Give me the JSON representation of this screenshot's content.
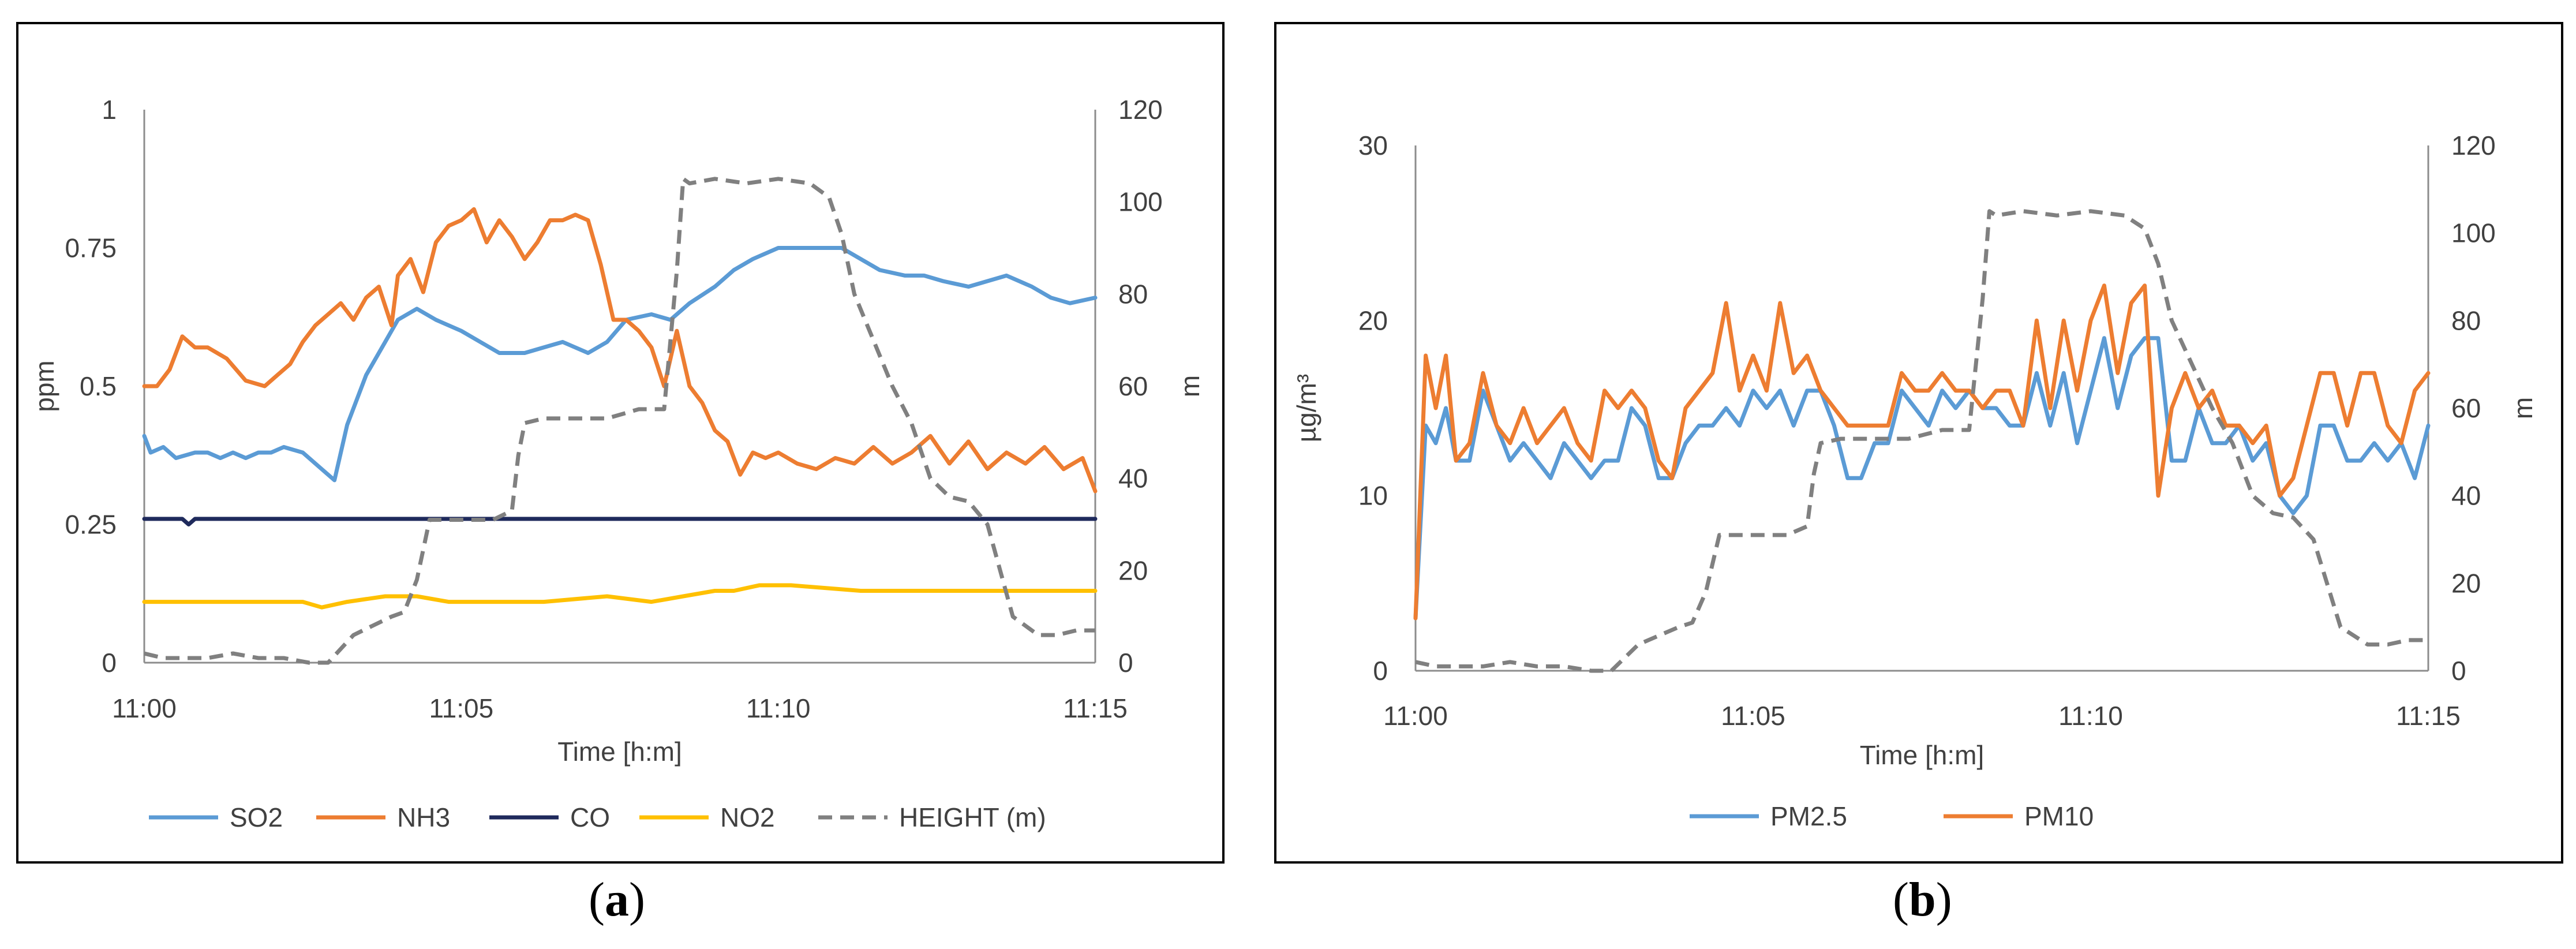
{
  "figure": {
    "caption_a": "(a)",
    "caption_b": "(b)"
  },
  "chart_data": [
    {
      "id": "a",
      "type": "line",
      "title": "",
      "xlabel": "Time [h:m]",
      "ylabel": "ppm",
      "y2label": "m",
      "xlim": [
        0,
        15
      ],
      "ylim": [
        0,
        1
      ],
      "y2lim": [
        0,
        120
      ],
      "xticks": [
        0,
        5,
        10,
        15
      ],
      "xtick_labels": [
        "11:00",
        "11:05",
        "11:10",
        "11:15"
      ],
      "yticks": [
        0,
        0.25,
        0.5,
        0.75,
        1
      ],
      "ytick_labels": [
        "0",
        "0.25",
        "0.5",
        "0.75",
        "1"
      ],
      "y2ticks": [
        0,
        20,
        40,
        60,
        80,
        100,
        120
      ],
      "y2tick_labels": [
        "0",
        "20",
        "40",
        "60",
        "80",
        "100",
        "120"
      ],
      "legend_position": "bottom",
      "series": [
        {
          "name": "SO2",
          "color": "#5B9BD5",
          "axis": "left",
          "dash": "solid",
          "x": [
            0,
            0.1,
            0.3,
            0.5,
            0.8,
            1.0,
            1.2,
            1.4,
            1.6,
            1.8,
            2.0,
            2.2,
            2.5,
            2.8,
            3.0,
            3.2,
            3.5,
            3.8,
            4.0,
            4.3,
            4.6,
            5.0,
            5.3,
            5.6,
            6.0,
            6.3,
            6.6,
            7.0,
            7.3,
            7.6,
            8.0,
            8.3,
            8.6,
            9.0,
            9.3,
            9.6,
            10.0,
            10.5,
            11.0,
            11.3,
            11.6,
            12.0,
            12.3,
            12.6,
            13.0,
            13.3,
            13.6,
            14.0,
            14.3,
            14.6,
            15.0
          ],
          "y": [
            0.41,
            0.38,
            0.39,
            0.37,
            0.38,
            0.38,
            0.37,
            0.38,
            0.37,
            0.38,
            0.38,
            0.39,
            0.38,
            0.35,
            0.33,
            0.43,
            0.52,
            0.58,
            0.62,
            0.64,
            0.62,
            0.6,
            0.58,
            0.56,
            0.56,
            0.57,
            0.58,
            0.56,
            0.58,
            0.62,
            0.63,
            0.62,
            0.65,
            0.68,
            0.71,
            0.73,
            0.75,
            0.75,
            0.75,
            0.73,
            0.71,
            0.7,
            0.7,
            0.69,
            0.68,
            0.69,
            0.7,
            0.68,
            0.66,
            0.65,
            0.66
          ]
        },
        {
          "name": "NH3",
          "color": "#ED7D31",
          "axis": "left",
          "dash": "solid",
          "x": [
            0,
            0.2,
            0.4,
            0.6,
            0.8,
            1.0,
            1.3,
            1.6,
            1.9,
            2.1,
            2.3,
            2.5,
            2.7,
            2.9,
            3.1,
            3.3,
            3.5,
            3.7,
            3.9,
            4.0,
            4.2,
            4.4,
            4.6,
            4.8,
            5.0,
            5.2,
            5.4,
            5.6,
            5.8,
            6.0,
            6.2,
            6.4,
            6.6,
            6.8,
            7.0,
            7.2,
            7.4,
            7.6,
            7.8,
            8.0,
            8.2,
            8.4,
            8.6,
            8.8,
            9.0,
            9.2,
            9.4,
            9.6,
            9.8,
            10.0,
            10.3,
            10.6,
            10.9,
            11.2,
            11.5,
            11.8,
            12.1,
            12.4,
            12.7,
            13.0,
            13.3,
            13.6,
            13.9,
            14.2,
            14.5,
            14.8,
            15.0
          ],
          "y": [
            0.5,
            0.5,
            0.53,
            0.59,
            0.57,
            0.57,
            0.55,
            0.51,
            0.5,
            0.52,
            0.54,
            0.58,
            0.61,
            0.63,
            0.65,
            0.62,
            0.66,
            0.68,
            0.61,
            0.7,
            0.73,
            0.67,
            0.76,
            0.79,
            0.8,
            0.82,
            0.76,
            0.8,
            0.77,
            0.73,
            0.76,
            0.8,
            0.8,
            0.81,
            0.8,
            0.72,
            0.62,
            0.62,
            0.6,
            0.57,
            0.5,
            0.6,
            0.5,
            0.47,
            0.42,
            0.4,
            0.34,
            0.38,
            0.37,
            0.38,
            0.36,
            0.35,
            0.37,
            0.36,
            0.39,
            0.36,
            0.38,
            0.41,
            0.36,
            0.4,
            0.35,
            0.38,
            0.36,
            0.39,
            0.35,
            0.37,
            0.31
          ]
        },
        {
          "name": "CO",
          "color": "#1F2A5C",
          "axis": "left",
          "dash": "solid",
          "x": [
            0,
            0.6,
            0.7,
            0.8,
            15
          ],
          "y": [
            0.26,
            0.26,
            0.25,
            0.26,
            0.26
          ]
        },
        {
          "name": "NO2",
          "color": "#FFC000",
          "axis": "left",
          "dash": "solid",
          "x": [
            0,
            2.0,
            2.5,
            2.8,
            3.2,
            3.8,
            4.3,
            4.8,
            6.3,
            7.3,
            8.0,
            8.5,
            9.0,
            9.3,
            9.7,
            10.2,
            11.3,
            12.5,
            13.5,
            15.0
          ],
          "y": [
            0.11,
            0.11,
            0.11,
            0.1,
            0.11,
            0.12,
            0.12,
            0.11,
            0.11,
            0.12,
            0.11,
            0.12,
            0.13,
            0.13,
            0.14,
            0.14,
            0.13,
            0.13,
            0.13,
            0.13
          ]
        },
        {
          "name": "HEIGHT (m)",
          "color": "#808080",
          "axis": "right",
          "dash": "dashed",
          "x": [
            0,
            0.3,
            0.6,
            1.0,
            1.4,
            1.8,
            2.2,
            2.6,
            2.9,
            3.1,
            3.3,
            3.6,
            3.9,
            4.1,
            4.3,
            4.5,
            5.0,
            5.5,
            5.8,
            5.9,
            6.0,
            6.3,
            6.8,
            7.3,
            7.8,
            8.2,
            8.4,
            8.5,
            8.6,
            9.0,
            9.5,
            10.0,
            10.5,
            10.8,
            11.0,
            11.2,
            11.5,
            11.8,
            12.1,
            12.4,
            12.7,
            13.0,
            13.3,
            13.5,
            13.7,
            13.9,
            14.1,
            14.4,
            14.7,
            15.0
          ],
          "y": [
            2,
            1,
            1,
            1,
            2,
            1,
            1,
            0,
            0,
            3,
            6,
            8,
            10,
            11,
            18,
            31,
            31,
            31,
            33,
            45,
            52,
            53,
            53,
            53,
            55,
            55,
            85,
            105,
            104,
            105,
            104,
            105,
            104,
            101,
            93,
            80,
            70,
            60,
            52,
            40,
            36,
            35,
            30,
            20,
            10,
            8,
            6,
            6,
            7,
            7
          ]
        }
      ]
    },
    {
      "id": "b",
      "type": "line",
      "title": "",
      "xlabel": "Time [h:m]",
      "ylabel": "µg/m³",
      "y2label": "m",
      "xlim": [
        0,
        15
      ],
      "ylim": [
        0,
        30
      ],
      "y2lim": [
        0,
        120
      ],
      "xticks": [
        0,
        5,
        10,
        15
      ],
      "xtick_labels": [
        "11:00",
        "11:05",
        "11:10",
        "11:15"
      ],
      "yticks": [
        0,
        10,
        20,
        30
      ],
      "ytick_labels": [
        "0",
        "10",
        "20",
        "30"
      ],
      "y2ticks": [
        0,
        20,
        40,
        60,
        80,
        100,
        120
      ],
      "y2tick_labels": [
        "0",
        "20",
        "40",
        "60",
        "80",
        "100",
        "120"
      ],
      "legend_position": "bottom",
      "series": [
        {
          "name": "PM2.5",
          "color": "#5B9BD5",
          "axis": "left",
          "dash": "solid",
          "x": [
            0,
            0.15,
            0.3,
            0.45,
            0.6,
            0.8,
            1.0,
            1.2,
            1.4,
            1.6,
            1.8,
            2.0,
            2.2,
            2.4,
            2.6,
            2.8,
            3.0,
            3.2,
            3.4,
            3.6,
            3.8,
            4.0,
            4.2,
            4.4,
            4.6,
            4.8,
            5.0,
            5.2,
            5.4,
            5.6,
            5.8,
            6.0,
            6.2,
            6.4,
            6.6,
            6.8,
            7.0,
            7.2,
            7.4,
            7.6,
            7.8,
            8.0,
            8.2,
            8.4,
            8.6,
            8.8,
            9.0,
            9.2,
            9.4,
            9.6,
            9.8,
            10.0,
            10.2,
            10.4,
            10.6,
            10.8,
            11.0,
            11.2,
            11.4,
            11.6,
            11.8,
            12.0,
            12.2,
            12.4,
            12.6,
            12.8,
            13.0,
            13.2,
            13.4,
            13.6,
            13.8,
            14.0,
            14.2,
            14.4,
            14.6,
            14.8,
            15.0
          ],
          "y": [
            3,
            14,
            13,
            15,
            12,
            12,
            16,
            14,
            12,
            13,
            12,
            11,
            13,
            12,
            11,
            12,
            12,
            15,
            14,
            11,
            11,
            13,
            14,
            14,
            15,
            14,
            16,
            15,
            16,
            14,
            16,
            16,
            14,
            11,
            11,
            13,
            13,
            16,
            15,
            14,
            16,
            15,
            16,
            15,
            15,
            14,
            14,
            17,
            14,
            17,
            13,
            16,
            19,
            15,
            18,
            19,
            19,
            12,
            12,
            15,
            13,
            13,
            14,
            12,
            13,
            10,
            9,
            10,
            14,
            14,
            12,
            12,
            13,
            12,
            13,
            11,
            14
          ]
        },
        {
          "name": "PM10",
          "color": "#ED7D31",
          "axis": "left",
          "dash": "solid",
          "x": [
            0,
            0.15,
            0.3,
            0.45,
            0.6,
            0.8,
            1.0,
            1.2,
            1.4,
            1.6,
            1.8,
            2.0,
            2.2,
            2.4,
            2.6,
            2.8,
            3.0,
            3.2,
            3.4,
            3.6,
            3.8,
            4.0,
            4.2,
            4.4,
            4.6,
            4.8,
            5.0,
            5.2,
            5.4,
            5.6,
            5.8,
            6.0,
            6.2,
            6.4,
            6.6,
            6.8,
            7.0,
            7.2,
            7.4,
            7.6,
            7.8,
            8.0,
            8.2,
            8.4,
            8.6,
            8.8,
            9.0,
            9.2,
            9.4,
            9.6,
            9.8,
            10.0,
            10.2,
            10.4,
            10.6,
            10.8,
            11.0,
            11.2,
            11.4,
            11.6,
            11.8,
            12.0,
            12.2,
            12.4,
            12.6,
            12.8,
            13.0,
            13.2,
            13.4,
            13.6,
            13.8,
            14.0,
            14.2,
            14.4,
            14.6,
            14.8,
            15.0
          ],
          "y": [
            3,
            18,
            15,
            18,
            12,
            13,
            17,
            14,
            13,
            15,
            13,
            14,
            15,
            13,
            12,
            16,
            15,
            16,
            15,
            12,
            11,
            15,
            16,
            17,
            21,
            16,
            18,
            16,
            21,
            17,
            18,
            16,
            15,
            14,
            14,
            14,
            14,
            17,
            16,
            16,
            17,
            16,
            16,
            15,
            16,
            16,
            14,
            20,
            15,
            20,
            16,
            20,
            22,
            17,
            21,
            22,
            10,
            15,
            17,
            15,
            16,
            14,
            14,
            13,
            14,
            10,
            11,
            14,
            17,
            17,
            14,
            17,
            17,
            14,
            13,
            16,
            17
          ]
        },
        {
          "name": "HEIGHT (m)",
          "color": "#808080",
          "axis": "right",
          "dash": "dashed",
          "in_legend": false,
          "x": [
            0,
            0.3,
            0.6,
            1.0,
            1.4,
            1.8,
            2.2,
            2.6,
            2.9,
            3.1,
            3.3,
            3.6,
            3.9,
            4.1,
            4.3,
            4.5,
            5.0,
            5.5,
            5.8,
            5.9,
            6.0,
            6.3,
            6.8,
            7.3,
            7.8,
            8.2,
            8.4,
            8.5,
            8.6,
            9.0,
            9.5,
            10.0,
            10.5,
            10.8,
            11.0,
            11.2,
            11.5,
            11.8,
            12.1,
            12.4,
            12.7,
            13.0,
            13.3,
            13.5,
            13.7,
            13.9,
            14.1,
            14.4,
            14.7,
            15.0
          ],
          "y": [
            2,
            1,
            1,
            1,
            2,
            1,
            1,
            0,
            0,
            3,
            6,
            8,
            10,
            11,
            18,
            31,
            31,
            31,
            33,
            45,
            52,
            53,
            53,
            53,
            55,
            55,
            85,
            105,
            104,
            105,
            104,
            105,
            104,
            101,
            93,
            80,
            70,
            60,
            52,
            40,
            36,
            35,
            30,
            20,
            10,
            8,
            6,
            6,
            7,
            7
          ]
        }
      ]
    }
  ]
}
